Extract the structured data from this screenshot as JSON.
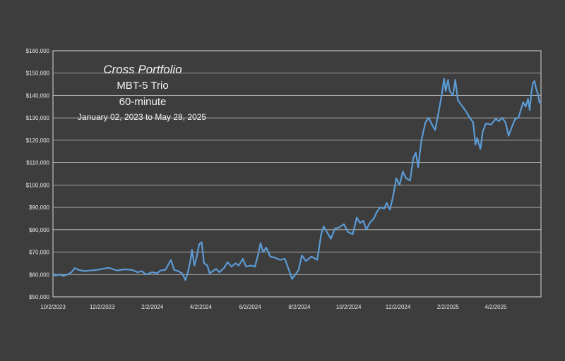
{
  "chart_data": {
    "type": "line",
    "title": "Cross Portfolio",
    "subtitle": "MBT-5 Trio",
    "subtitle2": "60-minute",
    "date_range": "January 02, 2023 to May 28, 2025",
    "xlabel": "",
    "ylabel": "",
    "ylim": [
      50000,
      160000
    ],
    "y_ticks": [
      50000,
      60000,
      70000,
      80000,
      90000,
      100000,
      110000,
      120000,
      130000,
      140000,
      150000,
      160000
    ],
    "y_tick_labels": [
      "$50,000",
      "$60,000",
      "$70,000",
      "$80,000",
      "$90,000",
      "$100,000",
      "$110,000",
      "$120,000",
      "$130,000",
      "$140,000",
      "$150,000",
      "$160,000"
    ],
    "x_range": [
      "2023-10-02",
      "2025-05-28"
    ],
    "x_ticks": [
      "2023-10-02",
      "2023-12-02",
      "2024-02-02",
      "2024-04-02",
      "2024-06-02",
      "2024-08-02",
      "2024-10-02",
      "2024-12-02",
      "2025-02-02",
      "2025-04-02"
    ],
    "x_tick_labels": [
      "10/2/2023",
      "12/2/2023",
      "2/2/2024",
      "4/2/2024",
      "6/2/2024",
      "8/2/2024",
      "10/2/2024",
      "12/2/2024",
      "2/2/2025",
      "4/2/2025"
    ],
    "grid": "horizontal",
    "line_color": "#5b9bd5",
    "series": [
      {
        "points": [
          [
            "2023-10-02",
            60500
          ],
          [
            "2023-10-05",
            59500
          ],
          [
            "2023-10-10",
            60000
          ],
          [
            "2023-10-15",
            59300
          ],
          [
            "2023-10-20",
            60000
          ],
          [
            "2023-10-25",
            61000
          ],
          [
            "2023-10-29",
            62800
          ],
          [
            "2023-11-03",
            62000
          ],
          [
            "2023-11-10",
            61500
          ],
          [
            "2023-11-18",
            61800
          ],
          [
            "2023-11-25",
            62000
          ],
          [
            "2023-12-02",
            62500
          ],
          [
            "2023-12-10",
            63000
          ],
          [
            "2023-12-20",
            61800
          ],
          [
            "2023-12-30",
            62300
          ],
          [
            "2024-01-08",
            62000
          ],
          [
            "2024-01-15",
            61000
          ],
          [
            "2024-01-20",
            61500
          ],
          [
            "2024-01-25",
            60000
          ],
          [
            "2024-02-02",
            61000
          ],
          [
            "2024-02-08",
            60500
          ],
          [
            "2024-02-12",
            61800
          ],
          [
            "2024-02-18",
            62000
          ],
          [
            "2024-02-25",
            66500
          ],
          [
            "2024-02-29",
            62000
          ],
          [
            "2024-03-05",
            61500
          ],
          [
            "2024-03-10",
            60500
          ],
          [
            "2024-03-14",
            57500
          ],
          [
            "2024-03-17",
            61000
          ],
          [
            "2024-03-20",
            66000
          ],
          [
            "2024-03-22",
            71000
          ],
          [
            "2024-03-25",
            64000
          ],
          [
            "2024-03-28",
            68000
          ],
          [
            "2024-03-31",
            73500
          ],
          [
            "2024-04-03",
            74500
          ],
          [
            "2024-04-06",
            65000
          ],
          [
            "2024-04-10",
            64000
          ],
          [
            "2024-04-13",
            60500
          ],
          [
            "2024-04-17",
            61500
          ],
          [
            "2024-04-21",
            62500
          ],
          [
            "2024-04-25",
            61000
          ],
          [
            "2024-05-01",
            63000
          ],
          [
            "2024-05-05",
            65500
          ],
          [
            "2024-05-10",
            63500
          ],
          [
            "2024-05-15",
            65000
          ],
          [
            "2024-05-19",
            64000
          ],
          [
            "2024-05-24",
            67000
          ],
          [
            "2024-05-28",
            63500
          ],
          [
            "2024-06-03",
            64000
          ],
          [
            "2024-06-08",
            63500
          ],
          [
            "2024-06-12",
            69000
          ],
          [
            "2024-06-15",
            74000
          ],
          [
            "2024-06-18",
            70000
          ],
          [
            "2024-06-22",
            72000
          ],
          [
            "2024-06-27",
            68000
          ],
          [
            "2024-07-03",
            67500
          ],
          [
            "2024-07-09",
            66500
          ],
          [
            "2024-07-15",
            67000
          ],
          [
            "2024-07-20",
            62000
          ],
          [
            "2024-07-24",
            58000
          ],
          [
            "2024-07-28",
            60000
          ],
          [
            "2024-08-01",
            62000
          ],
          [
            "2024-08-05",
            68500
          ],
          [
            "2024-08-10",
            66000
          ],
          [
            "2024-08-17",
            68000
          ],
          [
            "2024-08-24",
            66500
          ],
          [
            "2024-08-29",
            78000
          ],
          [
            "2024-09-01",
            81500
          ],
          [
            "2024-09-05",
            79000
          ],
          [
            "2024-09-10",
            76000
          ],
          [
            "2024-09-15",
            80500
          ],
          [
            "2024-09-20",
            81000
          ],
          [
            "2024-09-26",
            82500
          ],
          [
            "2024-10-01",
            79000
          ],
          [
            "2024-10-07",
            78000
          ],
          [
            "2024-10-12",
            85500
          ],
          [
            "2024-10-16",
            83000
          ],
          [
            "2024-10-20",
            84000
          ],
          [
            "2024-10-24",
            80000
          ],
          [
            "2024-10-28",
            83000
          ],
          [
            "2024-11-02",
            85000
          ],
          [
            "2024-11-06",
            88000
          ],
          [
            "2024-11-10",
            90000
          ],
          [
            "2024-11-15",
            89500
          ],
          [
            "2024-11-18",
            92000
          ],
          [
            "2024-11-22",
            89000
          ],
          [
            "2024-11-26",
            95000
          ],
          [
            "2024-11-30",
            103000
          ],
          [
            "2024-12-04",
            100000
          ],
          [
            "2024-12-08",
            106000
          ],
          [
            "2024-12-12",
            103000
          ],
          [
            "2024-12-17",
            102000
          ],
          [
            "2024-12-21",
            112000
          ],
          [
            "2024-12-24",
            114500
          ],
          [
            "2024-12-27",
            108000
          ],
          [
            "2024-12-31",
            120000
          ],
          [
            "2025-01-05",
            128000
          ],
          [
            "2025-01-09",
            130000
          ],
          [
            "2025-01-13",
            127000
          ],
          [
            "2025-01-17",
            124500
          ],
          [
            "2025-01-21",
            132000
          ],
          [
            "2025-01-25",
            140000
          ],
          [
            "2025-01-28",
            147500
          ],
          [
            "2025-01-30",
            142000
          ],
          [
            "2025-02-02",
            147000
          ],
          [
            "2025-02-04",
            142000
          ],
          [
            "2025-02-08",
            140000
          ],
          [
            "2025-02-11",
            147000
          ],
          [
            "2025-02-14",
            138000
          ],
          [
            "2025-02-18",
            136000
          ],
          [
            "2025-02-24",
            133000
          ],
          [
            "2025-03-01",
            130000
          ],
          [
            "2025-03-05",
            128000
          ],
          [
            "2025-03-08",
            118000
          ],
          [
            "2025-03-10",
            121000
          ],
          [
            "2025-03-14",
            116000
          ],
          [
            "2025-03-17",
            124000
          ],
          [
            "2025-03-21",
            127500
          ],
          [
            "2025-03-27",
            127000
          ],
          [
            "2025-04-02",
            129500
          ],
          [
            "2025-04-06",
            128500
          ],
          [
            "2025-04-10",
            130000
          ],
          [
            "2025-04-14",
            128000
          ],
          [
            "2025-04-18",
            122000
          ],
          [
            "2025-04-22",
            126000
          ],
          [
            "2025-04-26",
            129500
          ],
          [
            "2025-04-30",
            130000
          ],
          [
            "2025-05-03",
            133500
          ],
          [
            "2025-05-06",
            137000
          ],
          [
            "2025-05-09",
            135000
          ],
          [
            "2025-05-12",
            138500
          ],
          [
            "2025-05-14",
            133500
          ],
          [
            "2025-05-16",
            141000
          ],
          [
            "2025-05-18",
            145500
          ],
          [
            "2025-05-20",
            146500
          ],
          [
            "2025-05-22",
            143000
          ],
          [
            "2025-05-24",
            141000
          ],
          [
            "2025-05-26",
            137000
          ],
          [
            "2025-05-28",
            136500
          ]
        ]
      }
    ]
  }
}
